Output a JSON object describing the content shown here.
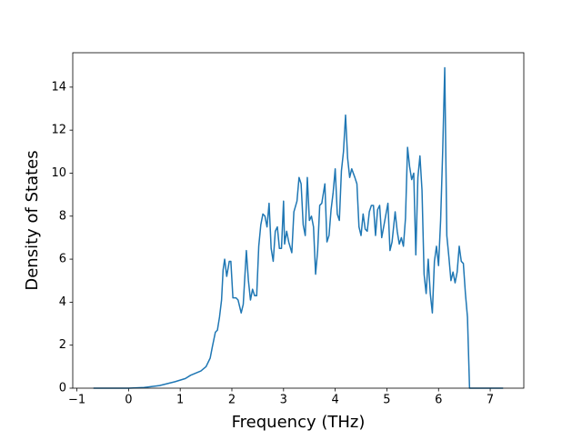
{
  "chart_data": {
    "type": "line",
    "xlabel": "Frequency (THz)",
    "ylabel": "Density of States",
    "color": "#1f77b4",
    "x": [
      -0.68,
      0,
      0.3,
      0.6,
      0.9,
      1.1,
      1.2,
      1.3,
      1.4,
      1.5,
      1.58,
      1.62,
      1.68,
      1.72,
      1.76,
      1.8,
      1.83,
      1.86,
      1.9,
      1.95,
      1.98,
      2.02,
      2.08,
      2.12,
      2.18,
      2.22,
      2.28,
      2.32,
      2.36,
      2.4,
      2.44,
      2.48,
      2.52,
      2.56,
      2.6,
      2.64,
      2.68,
      2.72,
      2.76,
      2.8,
      2.84,
      2.88,
      2.92,
      2.96,
      3.0,
      3.02,
      3.06,
      3.1,
      3.16,
      3.2,
      3.26,
      3.3,
      3.34,
      3.38,
      3.42,
      3.46,
      3.5,
      3.54,
      3.58,
      3.62,
      3.66,
      3.7,
      3.74,
      3.8,
      3.84,
      3.88,
      3.92,
      3.96,
      4.0,
      4.04,
      4.08,
      4.12,
      4.16,
      4.2,
      4.24,
      4.28,
      4.32,
      4.38,
      4.42,
      4.46,
      4.5,
      4.54,
      4.58,
      4.62,
      4.66,
      4.7,
      4.74,
      4.78,
      4.82,
      4.86,
      4.9,
      4.96,
      5.02,
      5.06,
      5.1,
      5.16,
      5.2,
      5.24,
      5.28,
      5.32,
      5.36,
      5.4,
      5.44,
      5.48,
      5.52,
      5.56,
      5.6,
      5.64,
      5.68,
      5.72,
      5.76,
      5.8,
      5.84,
      5.88,
      5.92,
      5.96,
      6.0,
      6.04,
      6.08,
      6.12,
      6.16,
      6.2,
      6.24,
      6.28,
      6.32,
      6.36,
      6.4,
      6.44,
      6.48,
      6.52,
      6.56,
      6.6,
      6.8,
      7.25
    ],
    "values": [
      0,
      0,
      0.03,
      0.12,
      0.3,
      0.45,
      0.6,
      0.7,
      0.8,
      1.0,
      1.4,
      1.9,
      2.6,
      2.7,
      3.3,
      4.1,
      5.5,
      6.0,
      5.2,
      5.9,
      5.9,
      4.2,
      4.2,
      4.1,
      3.5,
      3.9,
      6.4,
      5.0,
      4.1,
      4.6,
      4.3,
      4.3,
      6.6,
      7.6,
      8.1,
      8.0,
      7.5,
      8.6,
      6.5,
      5.9,
      7.3,
      7.5,
      6.5,
      6.5,
      8.7,
      6.7,
      7.3,
      6.8,
      6.3,
      8.2,
      8.7,
      9.8,
      9.5,
      7.6,
      7.1,
      9.8,
      7.8,
      8.0,
      7.5,
      5.3,
      6.4,
      8.5,
      8.6,
      9.5,
      6.8,
      7.1,
      8.3,
      9.1,
      10.2,
      8.1,
      7.8,
      10.1,
      11.0,
      12.7,
      10.7,
      9.8,
      10.2,
      9.8,
      9.5,
      7.5,
      7.1,
      8.1,
      7.4,
      7.3,
      8.2,
      8.5,
      8.5,
      7.1,
      8.3,
      8.5,
      7.0,
      7.8,
      8.6,
      6.4,
      6.8,
      8.2,
      7.3,
      6.7,
      7.0,
      6.6,
      7.9,
      11.2,
      10.3,
      9.7,
      10.0,
      6.2,
      9.8,
      10.8,
      9.2,
      5.3,
      4.4,
      6.0,
      4.4,
      3.5,
      5.9,
      6.6,
      5.7,
      7.8,
      11.0,
      14.9,
      7.1,
      6.1,
      5.0,
      5.4,
      4.9,
      5.4,
      6.6,
      5.9,
      5.8,
      4.4,
      3.3,
      0,
      0,
      0
    ],
    "xlim": [
      -1.08,
      7.65
    ],
    "ylim": [
      0,
      15.6
    ],
    "xticks": [
      {
        "value": -1,
        "label": "−1"
      },
      0,
      1,
      2,
      3,
      4,
      5,
      6,
      7
    ],
    "yticks": [
      0,
      2,
      4,
      6,
      8,
      10,
      12,
      14
    ]
  }
}
